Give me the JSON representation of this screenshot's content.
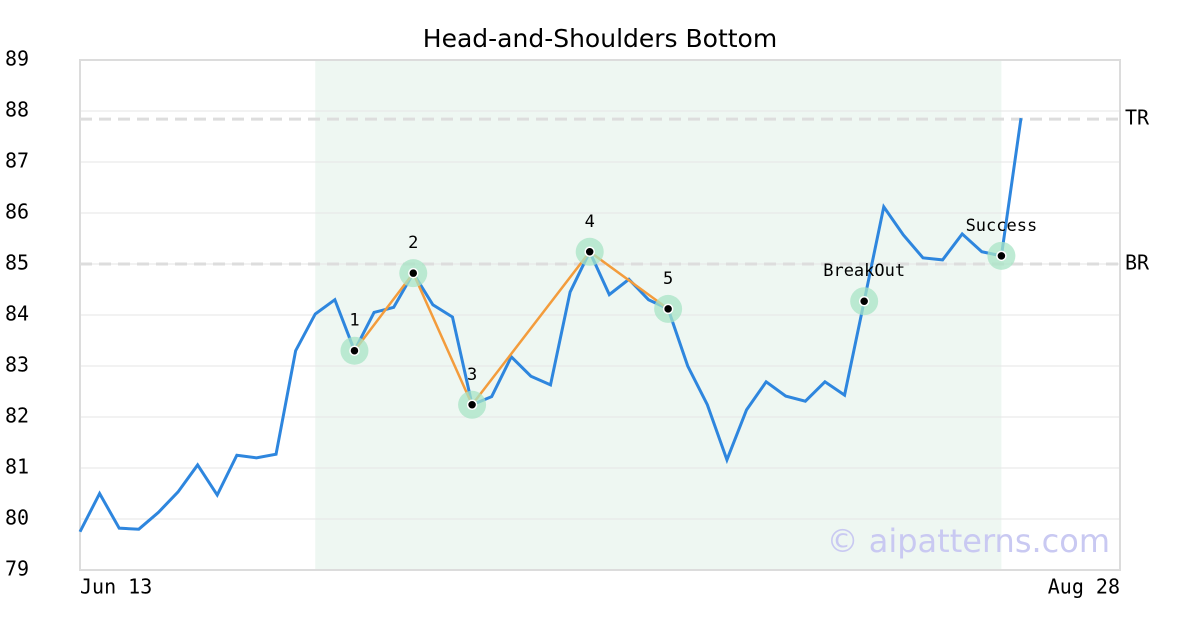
{
  "chart_data": {
    "type": "line",
    "title": "Head-and-Shoulders Bottom",
    "categories": [
      "Jun 13",
      null,
      null,
      null,
      null,
      null,
      null,
      null,
      null,
      null,
      null,
      null,
      null,
      null,
      null,
      null,
      null,
      null,
      null,
      null,
      null,
      null,
      null,
      null,
      null,
      null,
      null,
      null,
      null,
      null,
      null,
      null,
      null,
      null,
      null,
      null,
      null,
      null,
      null,
      null,
      null,
      null,
      null,
      null,
      null,
      null,
      null,
      null,
      "Aug 28"
    ],
    "values": [
      79.75,
      80.5,
      79.82,
      79.8,
      80.13,
      80.53,
      81.06,
      80.47,
      81.25,
      81.2,
      81.27,
      83.3,
      84.02,
      84.3,
      83.3,
      84.05,
      84.15,
      84.82,
      84.2,
      83.96,
      82.24,
      82.4,
      83.18,
      82.8,
      82.63,
      84.45,
      85.24,
      84.4,
      84.7,
      84.3,
      84.12,
      83.0,
      82.24,
      81.16,
      82.14,
      82.69,
      82.41,
      82.31,
      82.69,
      82.43,
      84.27,
      86.12,
      85.57,
      85.12,
      85.08,
      85.59,
      85.24,
      85.16,
      87.86
    ],
    "color": "#2e86de",
    "ylim": [
      79,
      89
    ],
    "yticks": [
      79,
      80,
      81,
      82,
      83,
      84,
      85,
      86,
      87,
      88,
      89
    ],
    "grid": true,
    "highlight": [
      12,
      47
    ],
    "pattern_color": "#f39c3c",
    "points": [
      {
        "label": "1",
        "x": 14,
        "y": 83.3
      },
      {
        "label": "2",
        "x": 17,
        "y": 84.82
      },
      {
        "label": "3",
        "x": 20,
        "y": 82.24
      },
      {
        "label": "4",
        "x": 26,
        "y": 85.24
      },
      {
        "label": "5",
        "x": 30,
        "y": 84.12
      },
      {
        "label": "BreakOut",
        "x": 40,
        "y": 84.27
      },
      {
        "label": "Success",
        "x": 47,
        "y": 85.16
      }
    ],
    "pattern_points": 5,
    "levels": [
      {
        "label": "TR",
        "value": 87.84
      },
      {
        "label": "BR",
        "value": 85.0
      }
    ],
    "watermark": "© aipatterns.com"
  }
}
